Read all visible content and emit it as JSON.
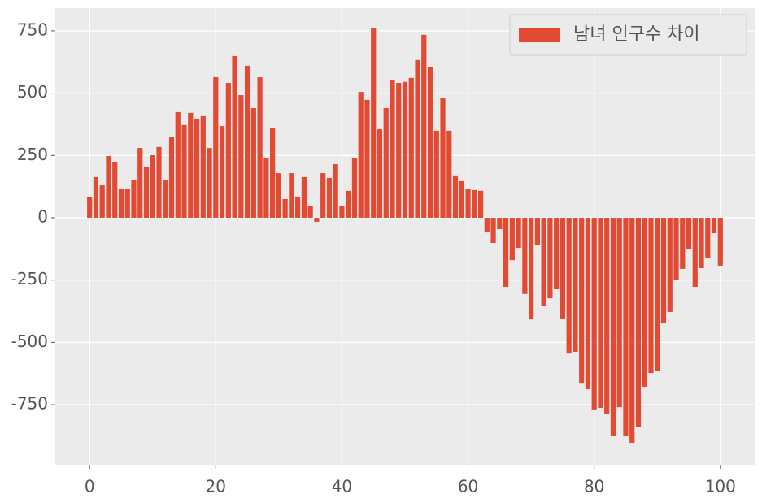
{
  "chart_data": {
    "type": "bar",
    "series": [
      {
        "name": "남녀 인구수 차이",
        "color": "#E24A33",
        "values": [
          82,
          163,
          130,
          248,
          225,
          117,
          117,
          153,
          280,
          205,
          251,
          284,
          153,
          326,
          424,
          372,
          421,
          395,
          408,
          280,
          564,
          368,
          541,
          649,
          492,
          610,
          440,
          564,
          241,
          359,
          179,
          75,
          179,
          85,
          163,
          46,
          -16,
          179,
          160,
          215,
          49,
          108,
          241,
          505,
          473,
          760,
          355,
          440,
          551,
          541,
          545,
          561,
          633,
          734,
          606,
          349,
          479,
          349,
          170,
          147,
          117,
          111,
          108,
          -59,
          -101,
          -46,
          -277,
          -170,
          -121,
          -306,
          -408,
          -111,
          -355,
          -323,
          -287,
          -404,
          -545,
          -538,
          -662,
          -688,
          -769,
          -763,
          -786,
          -874,
          -760,
          -877,
          -903,
          -841,
          -678,
          -623,
          -616,
          -424,
          -378,
          -248,
          -205,
          -127,
          -277,
          -202,
          -160,
          -62,
          -192
        ]
      }
    ],
    "xlim": [
      -5.44,
      105.44
    ],
    "xticks": [
      0,
      20,
      40,
      60,
      80,
      100
    ],
    "ylim": [
      -991,
      841
    ],
    "yticks": [
      -750,
      -500,
      -250,
      0,
      250,
      500,
      750
    ],
    "grid": true,
    "legend": "upper right"
  }
}
